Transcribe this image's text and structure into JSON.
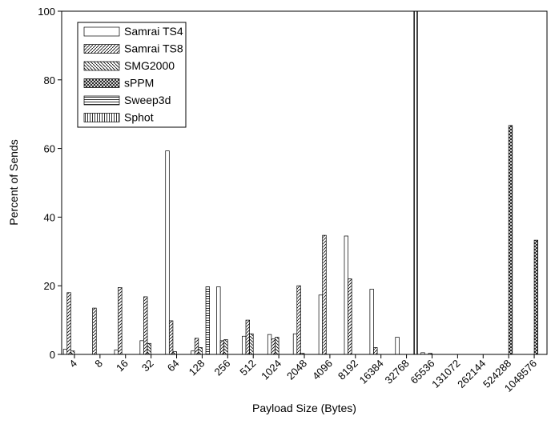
{
  "chart_data": {
    "type": "bar",
    "y_label": "Percent of Sends",
    "x_label": "Payload Size (Bytes)",
    "categories": [
      "4",
      "8",
      "16",
      "32",
      "64",
      "128",
      "256",
      "512",
      "1024",
      "2048",
      "4096",
      "8192",
      "16384",
      "32768",
      "65536",
      "131072",
      "262144",
      "524288",
      "1048576"
    ],
    "series": [
      {
        "name": "Samrai TS4",
        "pattern": "blank",
        "values": [
          1.5,
          0,
          1.3,
          4,
          59.3,
          1,
          19.7,
          5.3,
          5.8,
          6,
          17.3,
          34.5,
          19,
          5,
          0.5,
          0,
          0,
          0,
          0
        ]
      },
      {
        "name": "Samrai TS8",
        "pattern": "forward",
        "values": [
          18,
          13.5,
          19.5,
          16.8,
          9.8,
          4.7,
          4,
          10,
          4.5,
          20,
          34.7,
          22,
          2,
          0,
          0,
          0,
          0,
          0,
          0
        ]
      },
      {
        "name": "SMG2000",
        "pattern": "backward",
        "values": [
          1,
          0,
          0,
          3.2,
          0.8,
          2,
          4.3,
          6,
          5,
          0.3,
          0,
          0,
          0,
          0,
          0.3,
          0,
          0,
          0,
          0
        ]
      },
      {
        "name": "sPPM",
        "pattern": "cross",
        "values": [
          0,
          0,
          0,
          0,
          0,
          0,
          0,
          0,
          0,
          0,
          0,
          0,
          0,
          0,
          0,
          0,
          0,
          66.7,
          33.3
        ]
      },
      {
        "name": "Sweep3d",
        "pattern": "horizontal",
        "values": [
          0,
          0,
          0,
          0,
          0,
          19.7,
          0,
          0,
          0,
          0,
          0,
          0,
          0,
          0,
          0,
          0,
          0,
          0,
          0
        ]
      },
      {
        "name": "Sphot",
        "pattern": "vertical",
        "values": [
          0,
          0,
          0,
          0,
          0,
          0,
          0,
          0,
          0,
          0,
          0,
          0,
          0,
          100,
          0,
          0,
          0,
          0,
          0
        ]
      }
    ],
    "ylim": [
      0,
      100
    ],
    "yticks": [
      0,
      20,
      40,
      60,
      80,
      100
    ],
    "legend": "upper-left"
  }
}
